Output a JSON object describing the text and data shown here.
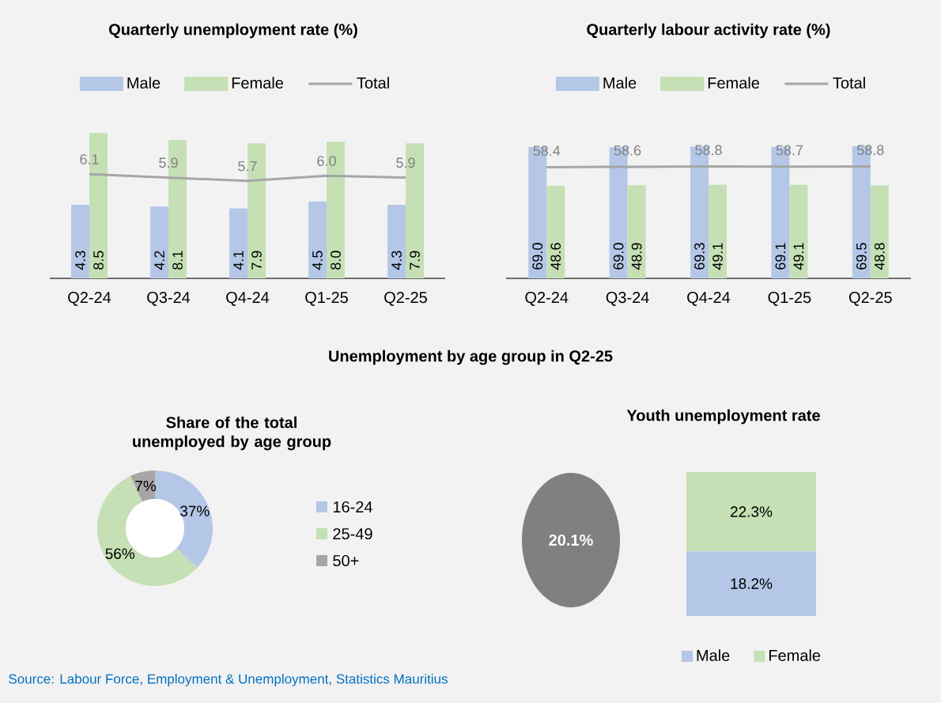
{
  "chart_data": [
    {
      "type": "bar",
      "title": "Quarterly unemployment rate (%)",
      "categories": [
        "Q2-24",
        "Q3-24",
        "Q4-24",
        "Q1-25",
        "Q2-25"
      ],
      "legend": "top",
      "series": [
        {
          "name": "Male",
          "type": "bar",
          "color": "#b4c7e7",
          "values": [
            4.3,
            4.2,
            4.1,
            4.5,
            4.3
          ],
          "value_labels": [
            "4.3",
            "4.2",
            "4.1",
            "4.5",
            "4.3"
          ]
        },
        {
          "name": "Female",
          "type": "bar",
          "color": "#c5e0b4",
          "values": [
            8.5,
            8.1,
            7.9,
            8.0,
            7.9
          ],
          "value_labels": [
            "8.5",
            "8.1",
            "7.9",
            "8.0",
            "7.9"
          ]
        },
        {
          "name": "Total",
          "type": "line",
          "color": "#a6a6a6",
          "values": [
            6.1,
            5.9,
            5.7,
            6.0,
            5.9
          ],
          "value_labels": [
            "6.1",
            "5.9",
            "5.7",
            "6.0",
            "5.9"
          ]
        }
      ]
    },
    {
      "type": "bar",
      "title": "Quarterly labour activity rate (%)",
      "categories": [
        "Q2-24",
        "Q3-24",
        "Q4-24",
        "Q1-25",
        "Q2-25"
      ],
      "legend": "top",
      "series": [
        {
          "name": "Male",
          "type": "bar",
          "color": "#b4c7e7",
          "values": [
            69.0,
            69.0,
            69.3,
            69.1,
            69.5
          ],
          "value_labels": [
            "69.0",
            "69.0",
            "69.3",
            "69.1",
            "69.5"
          ]
        },
        {
          "name": "Female",
          "type": "bar",
          "color": "#c5e0b4",
          "values": [
            48.6,
            48.9,
            49.1,
            49.1,
            48.8
          ],
          "value_labels": [
            "48.6",
            "48.9",
            "49.1",
            "49.1",
            "48.8"
          ]
        },
        {
          "name": "Total",
          "type": "line",
          "color": "#a6a6a6",
          "values": [
            58.4,
            58.6,
            58.8,
            58.7,
            58.8
          ],
          "value_labels": [
            "58.4",
            "58.6",
            "58.8",
            "58.7",
            "58.8"
          ]
        }
      ]
    },
    {
      "type": "donut",
      "title": "Share of the total unemployed by age group",
      "categories": [
        "16-24",
        "25-49",
        "50+"
      ],
      "values": [
        37,
        56,
        7
      ],
      "colors": [
        "#b4c7e7",
        "#c5e0b4",
        "#a6a6a6"
      ],
      "value_labels": [
        "37%",
        "56%",
        "7%"
      ],
      "legend": "right",
      "annotations": [
        "Unemployment by age group in Q2-25",
        "Source: Labour Force, Employment & Unemployment, Statistics Mauritius"
      ]
    },
    {
      "type": "bar",
      "stacked": true,
      "title": "Youth unemployment rate",
      "categories": [
        null
      ],
      "legend": "bottom",
      "series": [
        {
          "name": "Male",
          "color": "#b4c7e7",
          "values": [
            18.2
          ],
          "value_labels": [
            "18.2%"
          ]
        },
        {
          "name": "Female",
          "color": "#c5e0b4",
          "values": [
            22.3
          ],
          "value_labels": [
            "22.3%"
          ]
        }
      ]
    },
    {
      "type": "other",
      "values": [
        20.1
      ],
      "colors": [
        "#808080"
      ],
      "value_labels": [
        "20.1%"
      ]
    }
  ]
}
